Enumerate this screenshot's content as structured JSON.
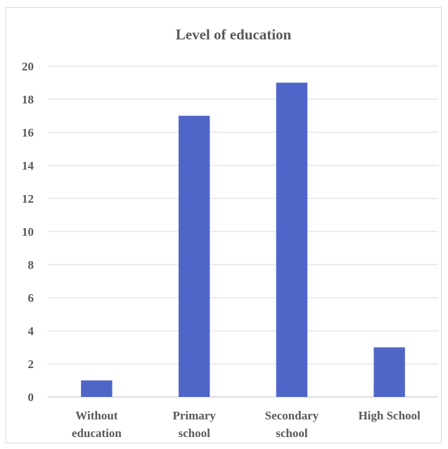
{
  "chart_data": {
    "type": "bar",
    "title": "Level of education",
    "categories": [
      [
        "Without",
        "education"
      ],
      [
        "Primary",
        "school"
      ],
      [
        "Secondary",
        "school"
      ],
      [
        "High School"
      ]
    ],
    "values": [
      1,
      17,
      19,
      3
    ],
    "ylim": [
      0,
      20
    ],
    "yticks": [
      0,
      2,
      4,
      6,
      8,
      10,
      12,
      14,
      16,
      18,
      20
    ],
    "grid": true,
    "legend": "none",
    "bar_color": "#4f66c8"
  }
}
